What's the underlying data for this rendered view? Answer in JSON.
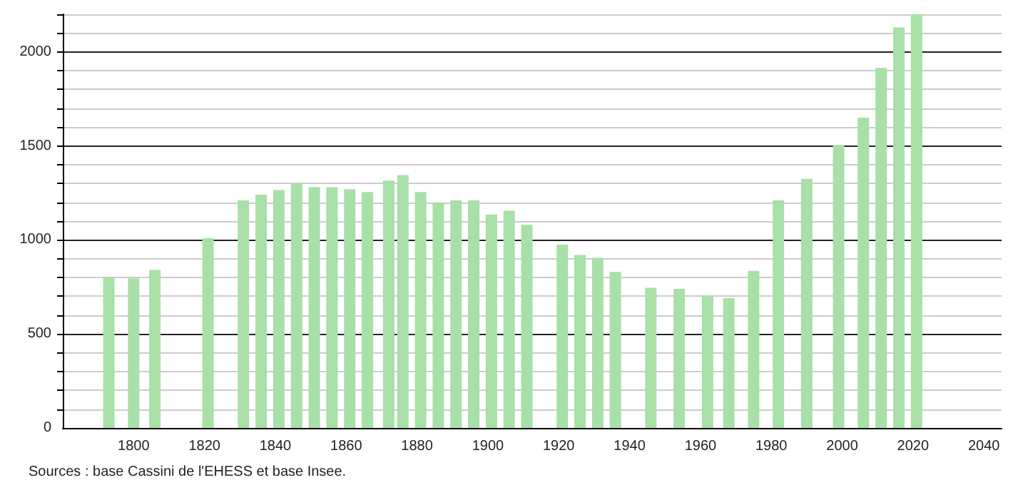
{
  "chart_data": {
    "type": "bar",
    "x": [
      1793,
      1800,
      1806,
      1821,
      1831,
      1836,
      1841,
      1846,
      1851,
      1856,
      1861,
      1866,
      1872,
      1876,
      1881,
      1886,
      1891,
      1896,
      1901,
      1906,
      1911,
      1921,
      1926,
      1931,
      1936,
      1946,
      1954,
      1962,
      1968,
      1975,
      1982,
      1990,
      1999,
      2006,
      2011,
      2016,
      2021
    ],
    "series": [
      {
        "color": "#a8e0a8",
        "values": [
          800,
          796,
          840,
          1010,
          1210,
          1240,
          1265,
          1300,
          1280,
          1280,
          1270,
          1255,
          1315,
          1345,
          1255,
          1200,
          1210,
          1210,
          1135,
          1155,
          1080,
          975,
          920,
          905,
          830,
          745,
          740,
          705,
          690,
          835,
          1210,
          1325,
          1505,
          1650,
          1915,
          2130,
          2200
        ]
      }
    ],
    "xlim": [
      1780,
      2045
    ],
    "xticks": [
      1800,
      1820,
      1840,
      1860,
      1880,
      1900,
      1920,
      1940,
      1960,
      1980,
      2000,
      2020,
      2040
    ],
    "ylim": [
      0,
      2200
    ],
    "yticks": [
      0,
      {
        "value": 100,
        "label": null
      },
      {
        "value": 200,
        "label": null
      },
      {
        "value": 300,
        "label": null
      },
      {
        "value": 400,
        "label": null
      },
      500,
      {
        "value": 600,
        "label": null
      },
      {
        "value": 700,
        "label": null
      },
      {
        "value": 800,
        "label": null
      },
      {
        "value": 900,
        "label": null
      },
      1000,
      {
        "value": 1100,
        "label": null
      },
      {
        "value": 1200,
        "label": null
      },
      {
        "value": 1300,
        "label": null
      },
      {
        "value": 1400,
        "label": null
      },
      1500,
      {
        "value": 1600,
        "label": null
      },
      {
        "value": 1700,
        "label": null
      },
      {
        "value": 1800,
        "label": null
      },
      {
        "value": 1900,
        "label": null
      },
      2000,
      {
        "value": 2100,
        "label": null
      },
      {
        "value": 2200,
        "label": null
      }
    ],
    "grid": "y",
    "annotations": [
      "Sources : base Cassini de l'EHESS et base Insee."
    ]
  }
}
